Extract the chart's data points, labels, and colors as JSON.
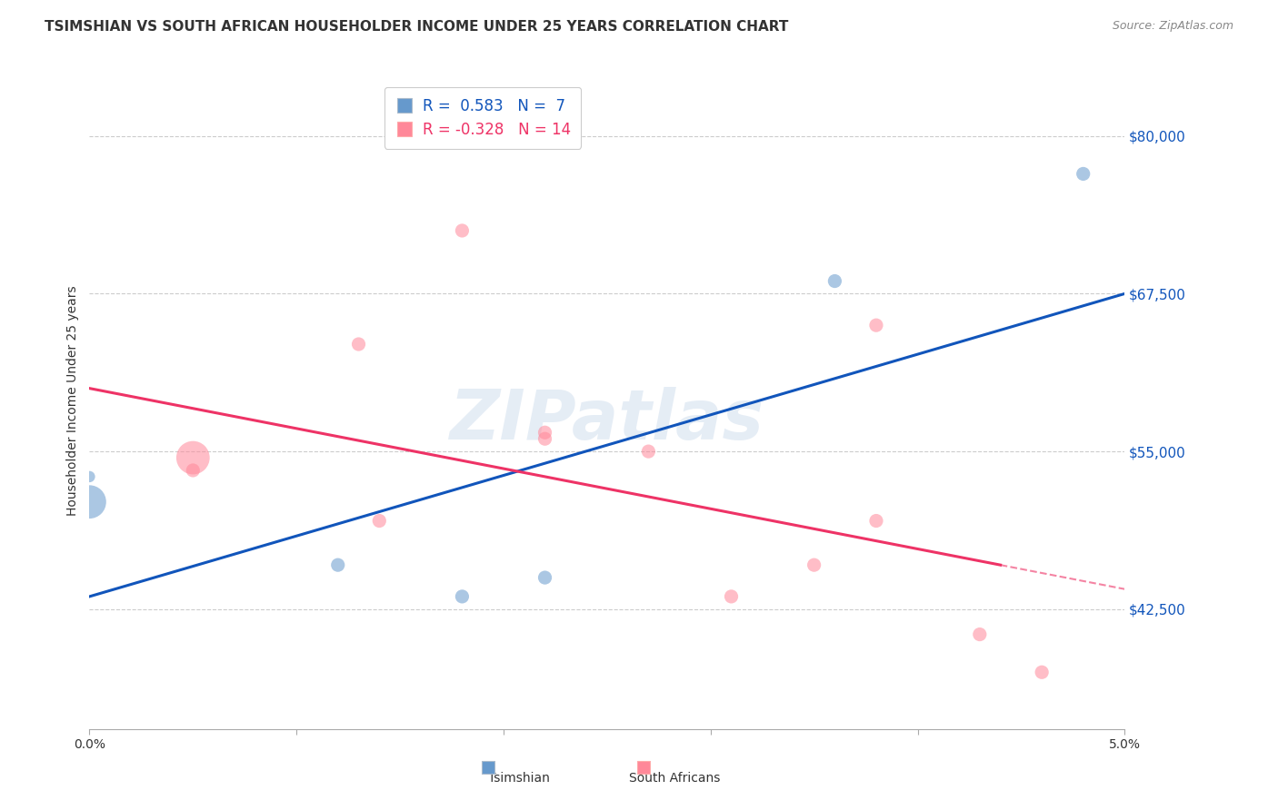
{
  "title": "TSIMSHIAN VS SOUTH AFRICAN HOUSEHOLDER INCOME UNDER 25 YEARS CORRELATION CHART",
  "source": "Source: ZipAtlas.com",
  "ylabel": "Householder Income Under 25 years",
  "ytick_labels": [
    "$42,500",
    "$55,000",
    "$67,500",
    "$80,000"
  ],
  "ytick_values": [
    42500,
    55000,
    67500,
    80000
  ],
  "ymin": 33000,
  "ymax": 85000,
  "xmin": 0.0,
  "xmax": 0.05,
  "tsimshian_x": [
    0.0,
    0.0,
    0.012,
    0.018,
    0.022,
    0.036,
    0.048
  ],
  "tsimshian_y": [
    53000,
    51000,
    46000,
    43500,
    45000,
    68500,
    77000
  ],
  "tsimshian_sizes": [
    80,
    700,
    120,
    120,
    120,
    120,
    120
  ],
  "south_african_x": [
    0.005,
    0.005,
    0.013,
    0.014,
    0.018,
    0.022,
    0.022,
    0.027,
    0.031,
    0.035,
    0.038,
    0.038,
    0.043,
    0.046
  ],
  "south_african_y": [
    54500,
    53500,
    63500,
    49500,
    72500,
    56000,
    56500,
    55000,
    43500,
    46000,
    49500,
    65000,
    40500,
    37500
  ],
  "south_african_sizes": [
    120,
    120,
    120,
    120,
    120,
    120,
    120,
    120,
    120,
    120,
    120,
    120,
    120,
    120
  ],
  "south_african_big_idx": 0,
  "south_african_big_size": 700,
  "tsimshian_color": "#6699cc",
  "south_african_color": "#ff8899",
  "tsimshian_line_color": "#1155bb",
  "south_african_line_color": "#ee3366",
  "legend_r_tsimshian": "R =  0.583   N =  7",
  "legend_r_south_african": "R = -0.328   N = 14",
  "watermark": "ZIPatlas",
  "grid_color": "#cccccc",
  "background_color": "#ffffff",
  "title_fontsize": 11,
  "axis_label_fontsize": 10,
  "tick_fontsize": 10,
  "source_fontsize": 9,
  "right_tick_color": "#1155bb"
}
